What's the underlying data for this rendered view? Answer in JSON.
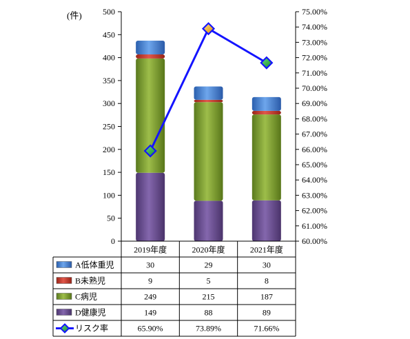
{
  "chart_data": {
    "type": "bar",
    "stacked": true,
    "unit_label": "(件)",
    "categories": [
      "2019年度",
      "2020年度",
      "2021年度"
    ],
    "ylim": [
      0,
      500
    ],
    "y_ticks": [
      "0",
      "50",
      "100",
      "150",
      "200",
      "250",
      "300",
      "350",
      "400",
      "450",
      "500"
    ],
    "y2lim": [
      0.6,
      0.75
    ],
    "y2_ticks": [
      "60.00%",
      "61.00%",
      "62.00%",
      "63.00%",
      "64.00%",
      "65.00%",
      "66.00%",
      "67.00%",
      "68.00%",
      "69.00%",
      "70.00%",
      "71.00%",
      "72.00%",
      "73.00%",
      "74.00%",
      "75.00%"
    ],
    "grid": false,
    "legend": "data-table below chart",
    "series": [
      {
        "name": "A低体重児",
        "values": [
          30,
          29,
          30
        ],
        "display": [
          "30",
          "29",
          "30"
        ],
        "color": "#3e7bd2",
        "kind": "bar"
      },
      {
        "name": "B未熟児",
        "values": [
          9,
          5,
          8
        ],
        "display": [
          "9",
          "5",
          "8"
        ],
        "color": "#c0392b",
        "kind": "bar"
      },
      {
        "name": "C病児",
        "values": [
          249,
          215,
          187
        ],
        "display": [
          "249",
          "215",
          "187"
        ],
        "color": "#7a9b2e",
        "kind": "bar"
      },
      {
        "name": "D健康児",
        "values": [
          149,
          88,
          89
        ],
        "display": [
          "149",
          "88",
          "89"
        ],
        "color": "#6a4f8c",
        "kind": "bar"
      },
      {
        "name": "リスク率",
        "values": [
          0.659,
          0.7389,
          0.7166
        ],
        "display": [
          "65.90%",
          "73.89%",
          "71.66%"
        ],
        "color": "#1414ff",
        "kind": "line"
      }
    ]
  }
}
